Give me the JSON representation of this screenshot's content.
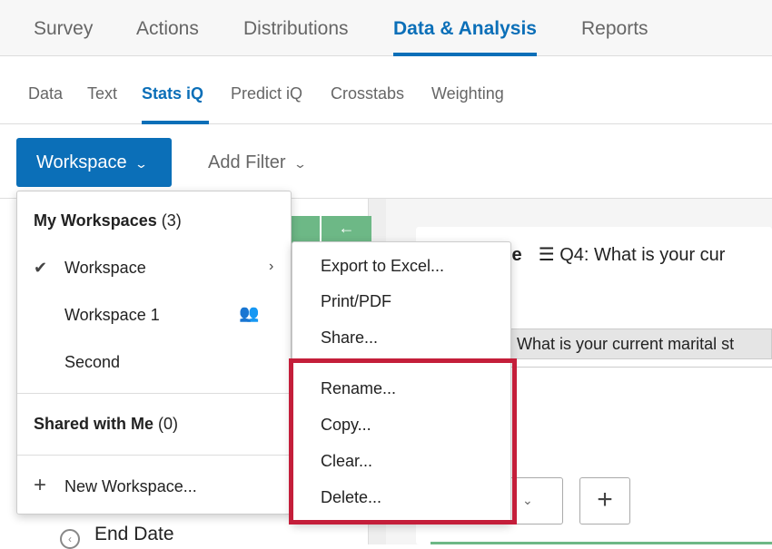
{
  "top_nav": {
    "tabs": [
      "Survey",
      "Actions",
      "Distributions",
      "Data & Analysis",
      "Reports"
    ],
    "active": "Data & Analysis"
  },
  "sub_nav": {
    "tabs": [
      "Data",
      "Text",
      "Stats iQ",
      "Predict iQ",
      "Crosstabs",
      "Weighting"
    ],
    "active": "Stats iQ"
  },
  "toolbar": {
    "workspace_label": "Workspace",
    "add_filter_label": "Add Filter"
  },
  "workspace_menu": {
    "my_title": "My Workspaces",
    "my_count": "(3)",
    "items": [
      {
        "label": "Workspace",
        "selected": true
      },
      {
        "label": "Workspace 1",
        "shared": true
      },
      {
        "label": "Second"
      }
    ],
    "shared_title": "Shared with Me",
    "shared_count": "(0)",
    "new_label": "New Workspace..."
  },
  "submenu": {
    "items": [
      "Export to Excel...",
      "Print/PDF",
      "Share...",
      "Rename...",
      "Copy...",
      "Clear...",
      "Delete..."
    ],
    "highlight_color": "#c41e3a"
  },
  "card": {
    "title_fragment": "le",
    "question_title": "Q4: What is your cur",
    "question_bar": "4: What is your current marital st"
  },
  "left_panel": {
    "end_date_label": "End Date"
  },
  "colors": {
    "accent": "#0b6fb8",
    "green": "#6db886"
  }
}
